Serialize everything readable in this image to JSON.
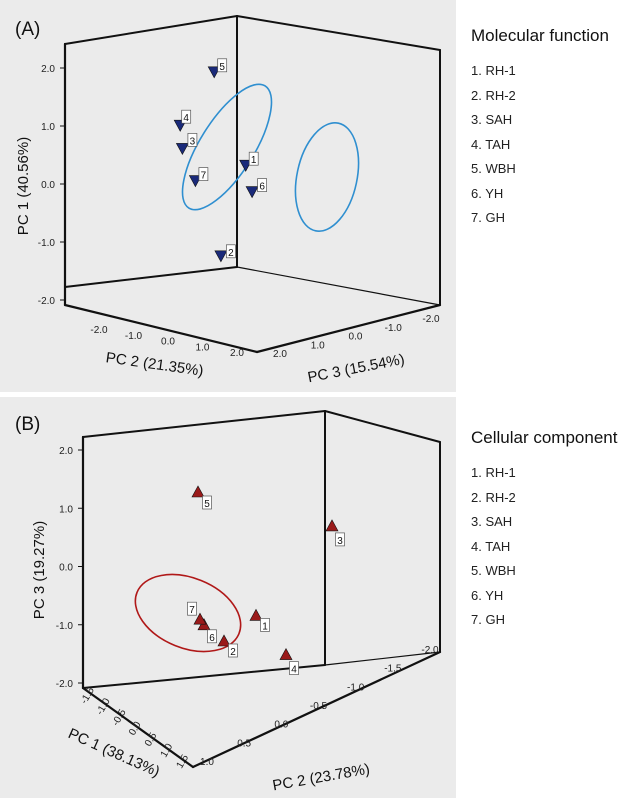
{
  "chart_data": [
    {
      "type": "scatter",
      "panel_label": "(A)",
      "title": "Molecular function",
      "axes": {
        "vertical": {
          "label": "PC 1 (40.56%)",
          "ticks": [
            "2.0",
            "1.0",
            "0.0",
            "-1.0",
            "-2.0"
          ],
          "range": [
            -2.0,
            2.0
          ]
        },
        "left_depth": {
          "label": "PC 2 (21.35%)",
          "ticks": [
            "-2.0",
            "-1.0",
            "0.0",
            "1.0",
            "2.0"
          ],
          "range": [
            -2.0,
            2.0
          ]
        },
        "right_depth": {
          "label": "PC 3 (15.54%)",
          "ticks": [
            "2.0",
            "1.0",
            "0.0",
            "-1.0",
            "-2.0"
          ],
          "range": [
            2.0,
            -2.0
          ]
        }
      },
      "marker": "triangle-down",
      "marker_color": "#1a2a7a",
      "ellipse_color": "#2f8fd0",
      "groups": [
        [
          "1",
          "5",
          "6"
        ],
        [
          "3",
          "4",
          "7"
        ]
      ],
      "points": [
        {
          "label": "1",
          "pc1": 0.3,
          "pc2": 0.1,
          "pc3": 1.2
        },
        {
          "label": "2",
          "pc1": -1.4,
          "pc2": 1.3,
          "pc3": 0.2
        },
        {
          "label": "3",
          "pc1": 0.3,
          "pc2": 1.6,
          "pc3": -0.9
        },
        {
          "label": "4",
          "pc1": 0.7,
          "pc2": 1.4,
          "pc3": -0.9
        },
        {
          "label": "5",
          "pc1": 1.8,
          "pc2": 0.0,
          "pc3": 0.4
        },
        {
          "label": "6",
          "pc1": -0.1,
          "pc2": -0.7,
          "pc3": 1.6
        },
        {
          "label": "7",
          "pc1": -0.2,
          "pc2": 1.4,
          "pc3": -0.5
        }
      ],
      "legend": [
        "1. RH-1",
        "2. RH-2",
        "3. SAH",
        "4. TAH",
        "5. WBH",
        "6. YH",
        "7. GH"
      ],
      "grid": false
    },
    {
      "type": "scatter",
      "panel_label": "(B)",
      "title": "Cellular component",
      "axes": {
        "vertical": {
          "label": "PC 3 (19.27%)",
          "ticks": [
            "2.0",
            "1.0",
            "0.0",
            "-1.0",
            "-2.0"
          ],
          "range": [
            -2.0,
            2.0
          ]
        },
        "left_depth": {
          "label": "PC 1 (38.13%)",
          "ticks": [
            "-1.5",
            "-1.0",
            "-0.5",
            "0.0",
            "0.5",
            "1.0",
            "1.5"
          ],
          "range": [
            -1.5,
            1.5
          ]
        },
        "right_depth": {
          "label": "PC 2 (23.78%)",
          "ticks": [
            "1.0",
            "0.5",
            "0.0",
            "-0.5",
            "-1.0",
            "-1.5",
            "-2.0"
          ],
          "range": [
            1.0,
            -2.0
          ]
        }
      },
      "marker": "triangle-up",
      "marker_color": "#9a1a1a",
      "ellipse_color": "#b01818",
      "groups": [
        [
          "1",
          "2",
          "6",
          "7"
        ]
      ],
      "points": [
        {
          "label": "1",
          "pc3": -0.7,
          "pc1": 0.7,
          "pc2": -0.4
        },
        {
          "label": "2",
          "pc3": -1.1,
          "pc1": 0.3,
          "pc2": 0.4
        },
        {
          "label": "3",
          "pc3": 0.75,
          "pc1": 1.2,
          "pc2": -2.0
        },
        {
          "label": "4",
          "pc3": -1.4,
          "pc1": -0.2,
          "pc2": -0.3
        },
        {
          "label": "5",
          "pc3": 1.5,
          "pc1": 0.2,
          "pc2": 0.9
        },
        {
          "label": "6",
          "pc3": -0.8,
          "pc1": 0.5,
          "pc2": 0.6
        },
        {
          "label": "7",
          "pc3": -0.7,
          "pc1": 0.6,
          "pc2": 0.6
        }
      ],
      "legend": [
        "1. RH-1",
        "2. RH-2",
        "3. SAH",
        "4. TAH",
        "5. WBH",
        "6. YH",
        "7. GH"
      ],
      "grid": false
    }
  ]
}
